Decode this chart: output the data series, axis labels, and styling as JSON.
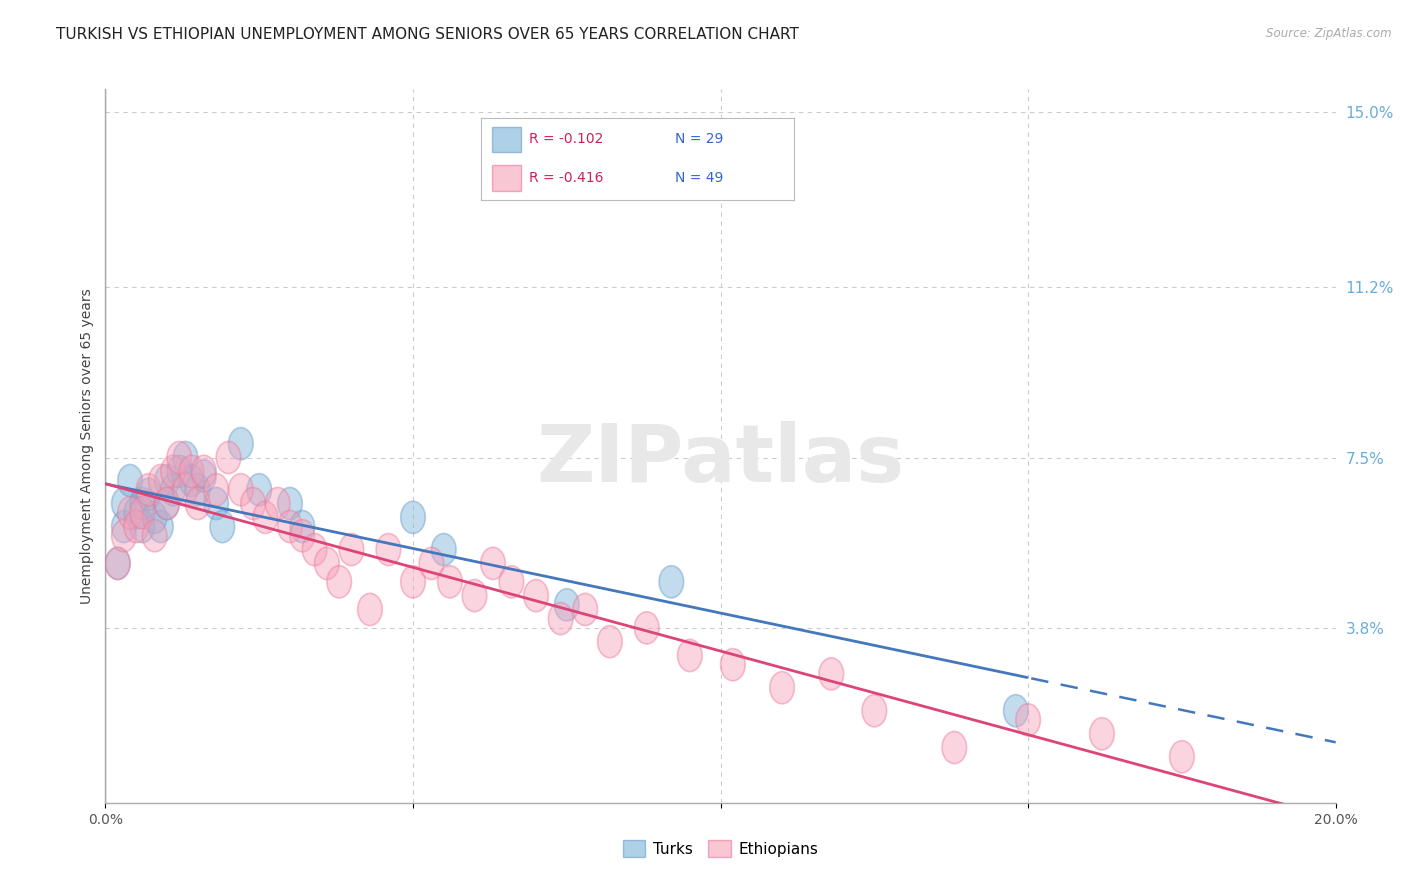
{
  "title": "TURKISH VS ETHIOPIAN UNEMPLOYMENT AMONG SENIORS OVER 65 YEARS CORRELATION CHART",
  "source": "Source: ZipAtlas.com",
  "ylabel": "Unemployment Among Seniors over 65 years",
  "xlim": [
    0.0,
    0.2
  ],
  "ylim": [
    0.0,
    0.155
  ],
  "xtick_vals": [
    0.0,
    0.05,
    0.1,
    0.15,
    0.2
  ],
  "xticklabels_show": [
    "0.0%",
    "",
    "",
    "",
    "20.0%"
  ],
  "yticks_right": [
    0.038,
    0.075,
    0.112,
    0.15
  ],
  "ytick_right_labels": [
    "3.8%",
    "7.5%",
    "11.2%",
    "15.0%"
  ],
  "turks_color": "#7ab3d9",
  "turks_edge_color": "#6699cc",
  "ethiopians_color": "#f5a0b8",
  "ethiopians_edge_color": "#ee7799",
  "turks_label": "Turks",
  "ethiopians_label": "Ethiopians",
  "turks_R": "-0.102",
  "turks_N": "29",
  "ethiopians_R": "-0.416",
  "ethiopians_N": "49",
  "background_color": "#ffffff",
  "grid_color": "#cccccc",
  "turks_line_color": "#4477bb",
  "ethiopians_line_color": "#dd4477",
  "turks_x": [
    0.002,
    0.003,
    0.003,
    0.004,
    0.005,
    0.006,
    0.006,
    0.007,
    0.008,
    0.009,
    0.01,
    0.01,
    0.011,
    0.012,
    0.013,
    0.014,
    0.015,
    0.016,
    0.018,
    0.019,
    0.022,
    0.025,
    0.03,
    0.032,
    0.05,
    0.055,
    0.075,
    0.092,
    0.148
  ],
  "turks_y": [
    0.052,
    0.06,
    0.065,
    0.07,
    0.063,
    0.06,
    0.065,
    0.067,
    0.062,
    0.06,
    0.065,
    0.07,
    0.068,
    0.072,
    0.075,
    0.07,
    0.068,
    0.071,
    0.065,
    0.06,
    0.078,
    0.068,
    0.065,
    0.06,
    0.062,
    0.055,
    0.043,
    0.048,
    0.02
  ],
  "ethiopians_x": [
    0.002,
    0.003,
    0.004,
    0.005,
    0.006,
    0.007,
    0.008,
    0.009,
    0.01,
    0.011,
    0.012,
    0.013,
    0.014,
    0.015,
    0.016,
    0.018,
    0.02,
    0.022,
    0.024,
    0.026,
    0.028,
    0.03,
    0.032,
    0.034,
    0.036,
    0.038,
    0.04,
    0.043,
    0.046,
    0.05,
    0.053,
    0.056,
    0.06,
    0.063,
    0.066,
    0.07,
    0.074,
    0.078,
    0.082,
    0.088,
    0.095,
    0.102,
    0.11,
    0.118,
    0.125,
    0.138,
    0.15,
    0.162,
    0.175
  ],
  "ethiopians_y": [
    0.052,
    0.058,
    0.063,
    0.06,
    0.063,
    0.068,
    0.058,
    0.07,
    0.065,
    0.072,
    0.075,
    0.068,
    0.072,
    0.065,
    0.072,
    0.068,
    0.075,
    0.068,
    0.065,
    0.062,
    0.065,
    0.06,
    0.058,
    0.055,
    0.052,
    0.048,
    0.055,
    0.042,
    0.055,
    0.048,
    0.052,
    0.048,
    0.045,
    0.052,
    0.048,
    0.045,
    0.04,
    0.042,
    0.035,
    0.038,
    0.032,
    0.03,
    0.025,
    0.028,
    0.02,
    0.012,
    0.018,
    0.015,
    0.01
  ],
  "title_fontsize": 11,
  "axis_label_fontsize": 10,
  "tick_fontsize": 10,
  "legend_fontsize": 10,
  "watermark_text": "ZIPatlas",
  "watermark_color": "#e8e8e8",
  "watermark_fontsize": 58
}
